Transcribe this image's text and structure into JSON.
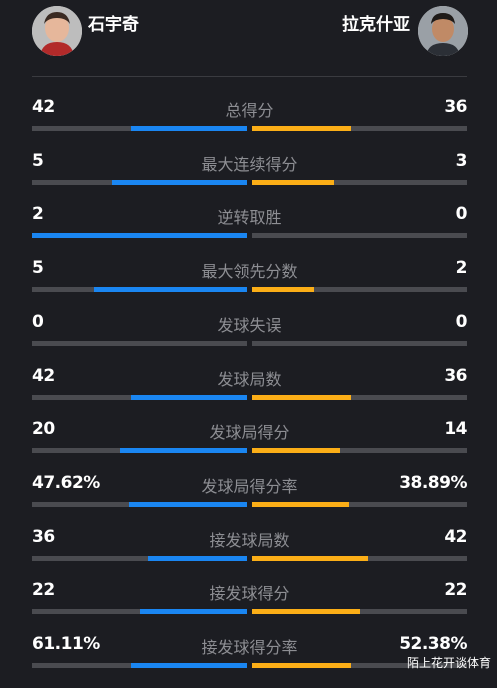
{
  "players": {
    "left": {
      "name": "石宇奇",
      "color": "#1a86f2"
    },
    "right": {
      "name": "拉克什亚",
      "color": "#fbae17"
    }
  },
  "stats": [
    {
      "label": "总得分",
      "left": "42",
      "right": "36",
      "left_frac": 0.54,
      "right_frac": 0.46
    },
    {
      "label": "最大连续得分",
      "left": "5",
      "right": "3",
      "left_frac": 0.63,
      "right_frac": 0.38
    },
    {
      "label": "逆转取胜",
      "left": "2",
      "right": "0",
      "left_frac": 1.0,
      "right_frac": 0.0
    },
    {
      "label": "最大领先分数",
      "left": "5",
      "right": "2",
      "left_frac": 0.71,
      "right_frac": 0.29
    },
    {
      "label": "发球失误",
      "left": "0",
      "right": "0",
      "left_frac": 0.0,
      "right_frac": 0.0
    },
    {
      "label": "发球局数",
      "left": "42",
      "right": "36",
      "left_frac": 0.54,
      "right_frac": 0.46
    },
    {
      "label": "发球局得分",
      "left": "20",
      "right": "14",
      "left_frac": 0.59,
      "right_frac": 0.41
    },
    {
      "label": "发球局得分率",
      "left": "47.62%",
      "right": "38.89%",
      "left_frac": 0.55,
      "right_frac": 0.45
    },
    {
      "label": "接发球局数",
      "left": "36",
      "right": "42",
      "left_frac": 0.46,
      "right_frac": 0.54
    },
    {
      "label": "接发球得分",
      "left": "22",
      "right": "22",
      "left_frac": 0.5,
      "right_frac": 0.5
    },
    {
      "label": "接发球得分率",
      "left": "61.11%",
      "right": "52.38%",
      "left_frac": 0.54,
      "right_frac": 0.46
    }
  ],
  "watermark": "陌上花开谈体育"
}
